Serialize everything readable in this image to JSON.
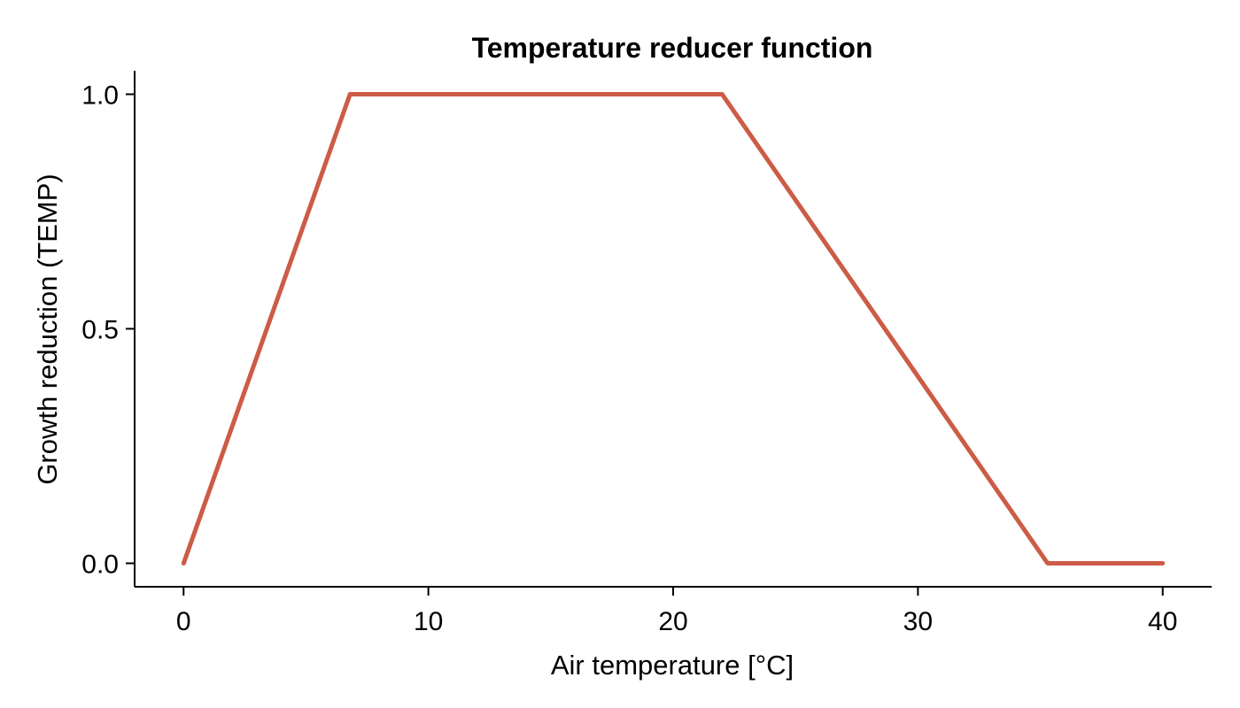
{
  "chart_data": {
    "type": "line",
    "title": "Temperature reducer function",
    "xlabel": "Air temperature [°C]",
    "ylabel": "Growth reduction (TEMP)",
    "xlim": [
      -2,
      42
    ],
    "ylim": [
      -0.05,
      1.05
    ],
    "xticks": [
      0,
      10,
      20,
      30,
      40
    ],
    "xtick_labels": [
      "0",
      "10",
      "20",
      "30",
      "40"
    ],
    "yticks": [
      0.0,
      0.5,
      1.0
    ],
    "ytick_labels": [
      "0.0",
      "0.5",
      "1.0"
    ],
    "grid": false,
    "series": [
      {
        "color": "#cc5c47",
        "x": [
          0.0,
          6.8,
          22.0,
          35.3,
          40.0
        ],
        "y": [
          0.0,
          1.0,
          1.0,
          0.0,
          0.0
        ]
      }
    ]
  }
}
